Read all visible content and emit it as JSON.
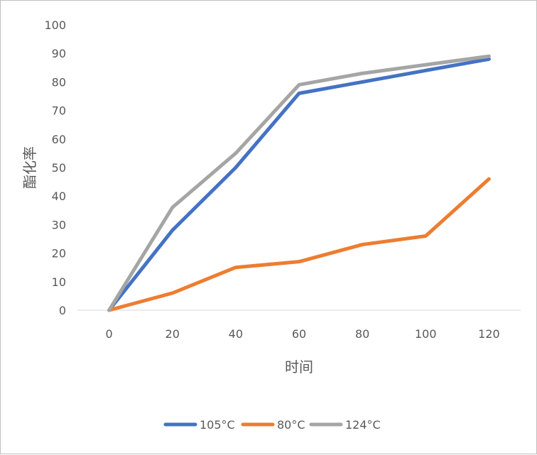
{
  "chart_data": {
    "type": "line",
    "title": "",
    "xlabel": "时间",
    "ylabel": "酯化率",
    "x": [
      0,
      20,
      40,
      60,
      80,
      100,
      120
    ],
    "ylim": [
      0,
      100
    ],
    "yticks": [
      0,
      10,
      20,
      30,
      40,
      50,
      60,
      70,
      80,
      90,
      100
    ],
    "grid": false,
    "legend_position": "bottom",
    "series": [
      {
        "name": "105°C",
        "color": "#4472C4",
        "values": [
          0,
          28,
          50,
          76,
          80,
          84,
          88
        ]
      },
      {
        "name": "80°C",
        "color": "#ED7D31",
        "values": [
          0,
          6,
          15,
          17,
          23,
          26,
          46
        ]
      },
      {
        "name": "124°C",
        "color": "#A5A5A5",
        "values": [
          0,
          36,
          55,
          79,
          83,
          86,
          89
        ]
      }
    ]
  }
}
